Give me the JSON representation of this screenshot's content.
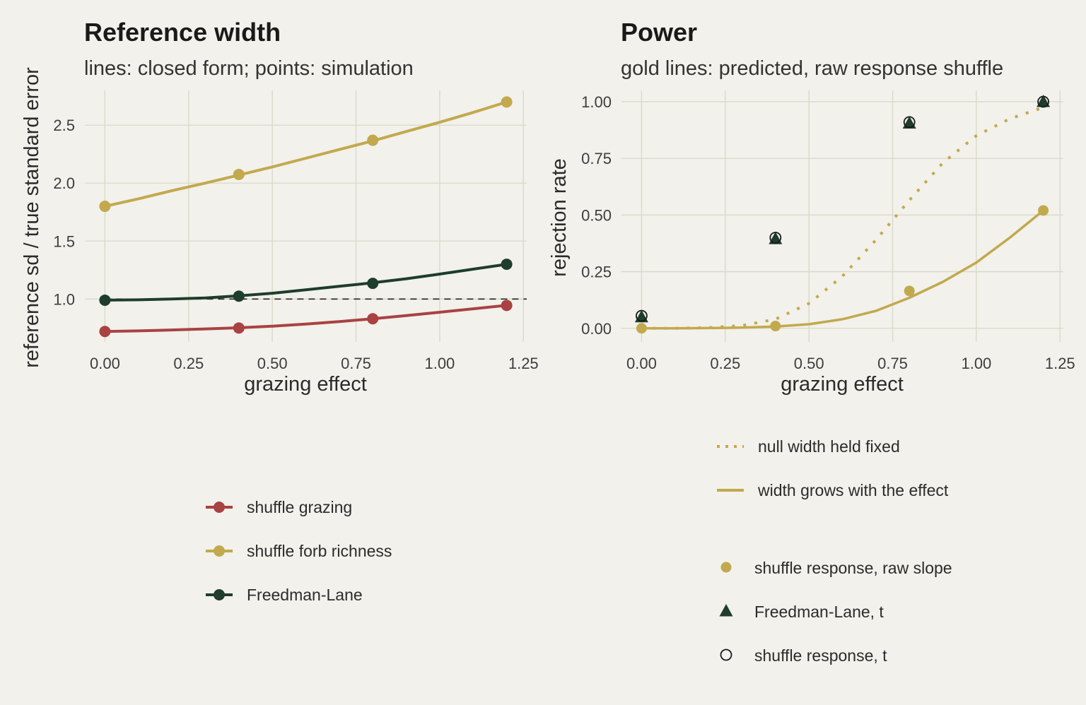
{
  "colors": {
    "background": "#f2f1eb",
    "grid": "#d9d8c8",
    "red": "#a94242",
    "gold": "#c2a94e",
    "green": "#1e3d2c",
    "black": "#1a1a1a"
  },
  "chart_data": [
    {
      "type": "line",
      "title": "Reference width",
      "subtitle": "lines: closed form; points: simulation",
      "xlabel": "grazing effect",
      "ylabel": "reference sd / true standard error",
      "xlim": [
        -0.06,
        1.26
      ],
      "ylim": [
        0.63,
        2.8
      ],
      "x_ticks": [
        0.0,
        0.25,
        0.5,
        0.75,
        1.0,
        1.25
      ],
      "x_tick_labels": [
        "0.00",
        "0.25",
        "0.50",
        "0.75",
        "1.00",
        "1.25"
      ],
      "y_ticks": [
        1.0,
        1.5,
        2.0,
        2.5
      ],
      "y_tick_labels": [
        "1.0",
        "1.5",
        "2.0",
        "2.5"
      ],
      "grid": true,
      "reference_line": {
        "y": 1.0,
        "style": "dashed"
      },
      "series": [
        {
          "name": "shuffle grazing",
          "color": "red",
          "line": {
            "x": [
              0,
              0.1,
              0.2,
              0.3,
              0.4,
              0.5,
              0.6,
              0.7,
              0.8,
              0.9,
              1.0,
              1.1,
              1.2
            ],
            "y": [
              0.72,
              0.725,
              0.733,
              0.742,
              0.752,
              0.766,
              0.784,
              0.805,
              0.83,
              0.857,
              0.886,
              0.916,
              0.945
            ]
          },
          "points": {
            "x": [
              0,
              0.4,
              0.8,
              1.2
            ],
            "y": [
              0.72,
              0.75,
              0.83,
              0.945
            ]
          }
        },
        {
          "name": "shuffle forb richness",
          "color": "gold",
          "line": {
            "x": [
              0,
              0.1,
              0.2,
              0.3,
              0.4,
              0.5,
              0.6,
              0.7,
              0.8,
              0.9,
              1.0,
              1.1,
              1.2
            ],
            "y": [
              1.8,
              1.865,
              1.935,
              2.0,
              2.07,
              2.14,
              2.215,
              2.29,
              2.365,
              2.445,
              2.525,
              2.61,
              2.7
            ]
          },
          "points": {
            "x": [
              0,
              0.4,
              0.8,
              1.2
            ],
            "y": [
              1.8,
              2.075,
              2.37,
              2.7
            ]
          }
        },
        {
          "name": "Freedman-Lane",
          "color": "green",
          "line": {
            "x": [
              0,
              0.1,
              0.2,
              0.3,
              0.4,
              0.5,
              0.6,
              0.7,
              0.8,
              0.9,
              1.0,
              1.1,
              1.2
            ],
            "y": [
              0.99,
              0.993,
              1.0,
              1.01,
              1.028,
              1.05,
              1.08,
              1.11,
              1.14,
              1.175,
              1.215,
              1.258,
              1.3
            ]
          },
          "points": {
            "x": [
              0,
              0.4,
              0.8,
              1.2
            ],
            "y": [
              0.99,
              1.025,
              1.135,
              1.3
            ]
          }
        }
      ],
      "legend": {
        "placement": "bottom",
        "items": [
          {
            "label": "shuffle grazing",
            "color": "red"
          },
          {
            "label": "shuffle forb richness",
            "color": "gold"
          },
          {
            "label": "Freedman-Lane",
            "color": "green"
          }
        ]
      }
    },
    {
      "type": "line",
      "title": "Power",
      "subtitle": "gold lines: predicted, raw response shuffle",
      "xlabel": "grazing effect",
      "ylabel": "rejection rate",
      "xlim": [
        -0.06,
        1.26
      ],
      "ylim": [
        -0.06,
        1.05
      ],
      "x_ticks": [
        0.0,
        0.25,
        0.5,
        0.75,
        1.0,
        1.25
      ],
      "x_tick_labels": [
        "0.00",
        "0.25",
        "0.50",
        "0.75",
        "1.00",
        "1.25"
      ],
      "y_ticks": [
        0.0,
        0.25,
        0.5,
        0.75,
        1.0
      ],
      "y_tick_labels": [
        "0.00",
        "0.25",
        "0.50",
        "0.75",
        "1.00"
      ],
      "grid": true,
      "lines": [
        {
          "name": "null width held fixed",
          "style": "dotted",
          "color": "gold",
          "x": [
            0,
            0.1,
            0.2,
            0.3,
            0.4,
            0.5,
            0.6,
            0.7,
            0.8,
            0.9,
            1.0,
            1.1,
            1.2
          ],
          "y": [
            0.0,
            0.0,
            0.003,
            0.012,
            0.04,
            0.11,
            0.23,
            0.39,
            0.565,
            0.73,
            0.85,
            0.925,
            0.975
          ]
        },
        {
          "name": "width grows with the effect",
          "style": "solid",
          "color": "gold",
          "x": [
            0,
            0.1,
            0.2,
            0.3,
            0.4,
            0.5,
            0.6,
            0.7,
            0.8,
            0.9,
            1.0,
            1.1,
            1.2
          ],
          "y": [
            0.0,
            0.0,
            0.001,
            0.003,
            0.008,
            0.018,
            0.04,
            0.077,
            0.135,
            0.205,
            0.29,
            0.4,
            0.52
          ]
        }
      ],
      "points": [
        {
          "name": "shuffle response, raw slope",
          "marker": "circle-filled",
          "color": "gold",
          "x": [
            0,
            0.4,
            0.8,
            1.2
          ],
          "y": [
            0.0,
            0.01,
            0.165,
            0.52
          ]
        },
        {
          "name": "Freedman-Lane, t",
          "marker": "triangle",
          "color": "green",
          "x": [
            0,
            0.4,
            0.8,
            1.2
          ],
          "y": [
            0.05,
            0.395,
            0.905,
            1.0
          ]
        },
        {
          "name": "shuffle response, t",
          "marker": "circle-open",
          "color": "black",
          "x": [
            0,
            0.4,
            0.8,
            1.2
          ],
          "y": [
            0.055,
            0.4,
            0.91,
            1.0
          ]
        }
      ],
      "legend": {
        "placement": "bottom",
        "line_items": [
          {
            "label": "null width held fixed",
            "style": "dotted",
            "color": "gold"
          },
          {
            "label": "width grows with the effect",
            "style": "solid",
            "color": "gold"
          }
        ],
        "point_items": [
          {
            "label": "shuffle response, raw slope",
            "marker": "circle-filled",
            "color": "gold"
          },
          {
            "label": "Freedman-Lane, t",
            "marker": "triangle",
            "color": "green"
          },
          {
            "label": "shuffle response, t",
            "marker": "circle-open",
            "color": "black"
          }
        ]
      }
    }
  ]
}
